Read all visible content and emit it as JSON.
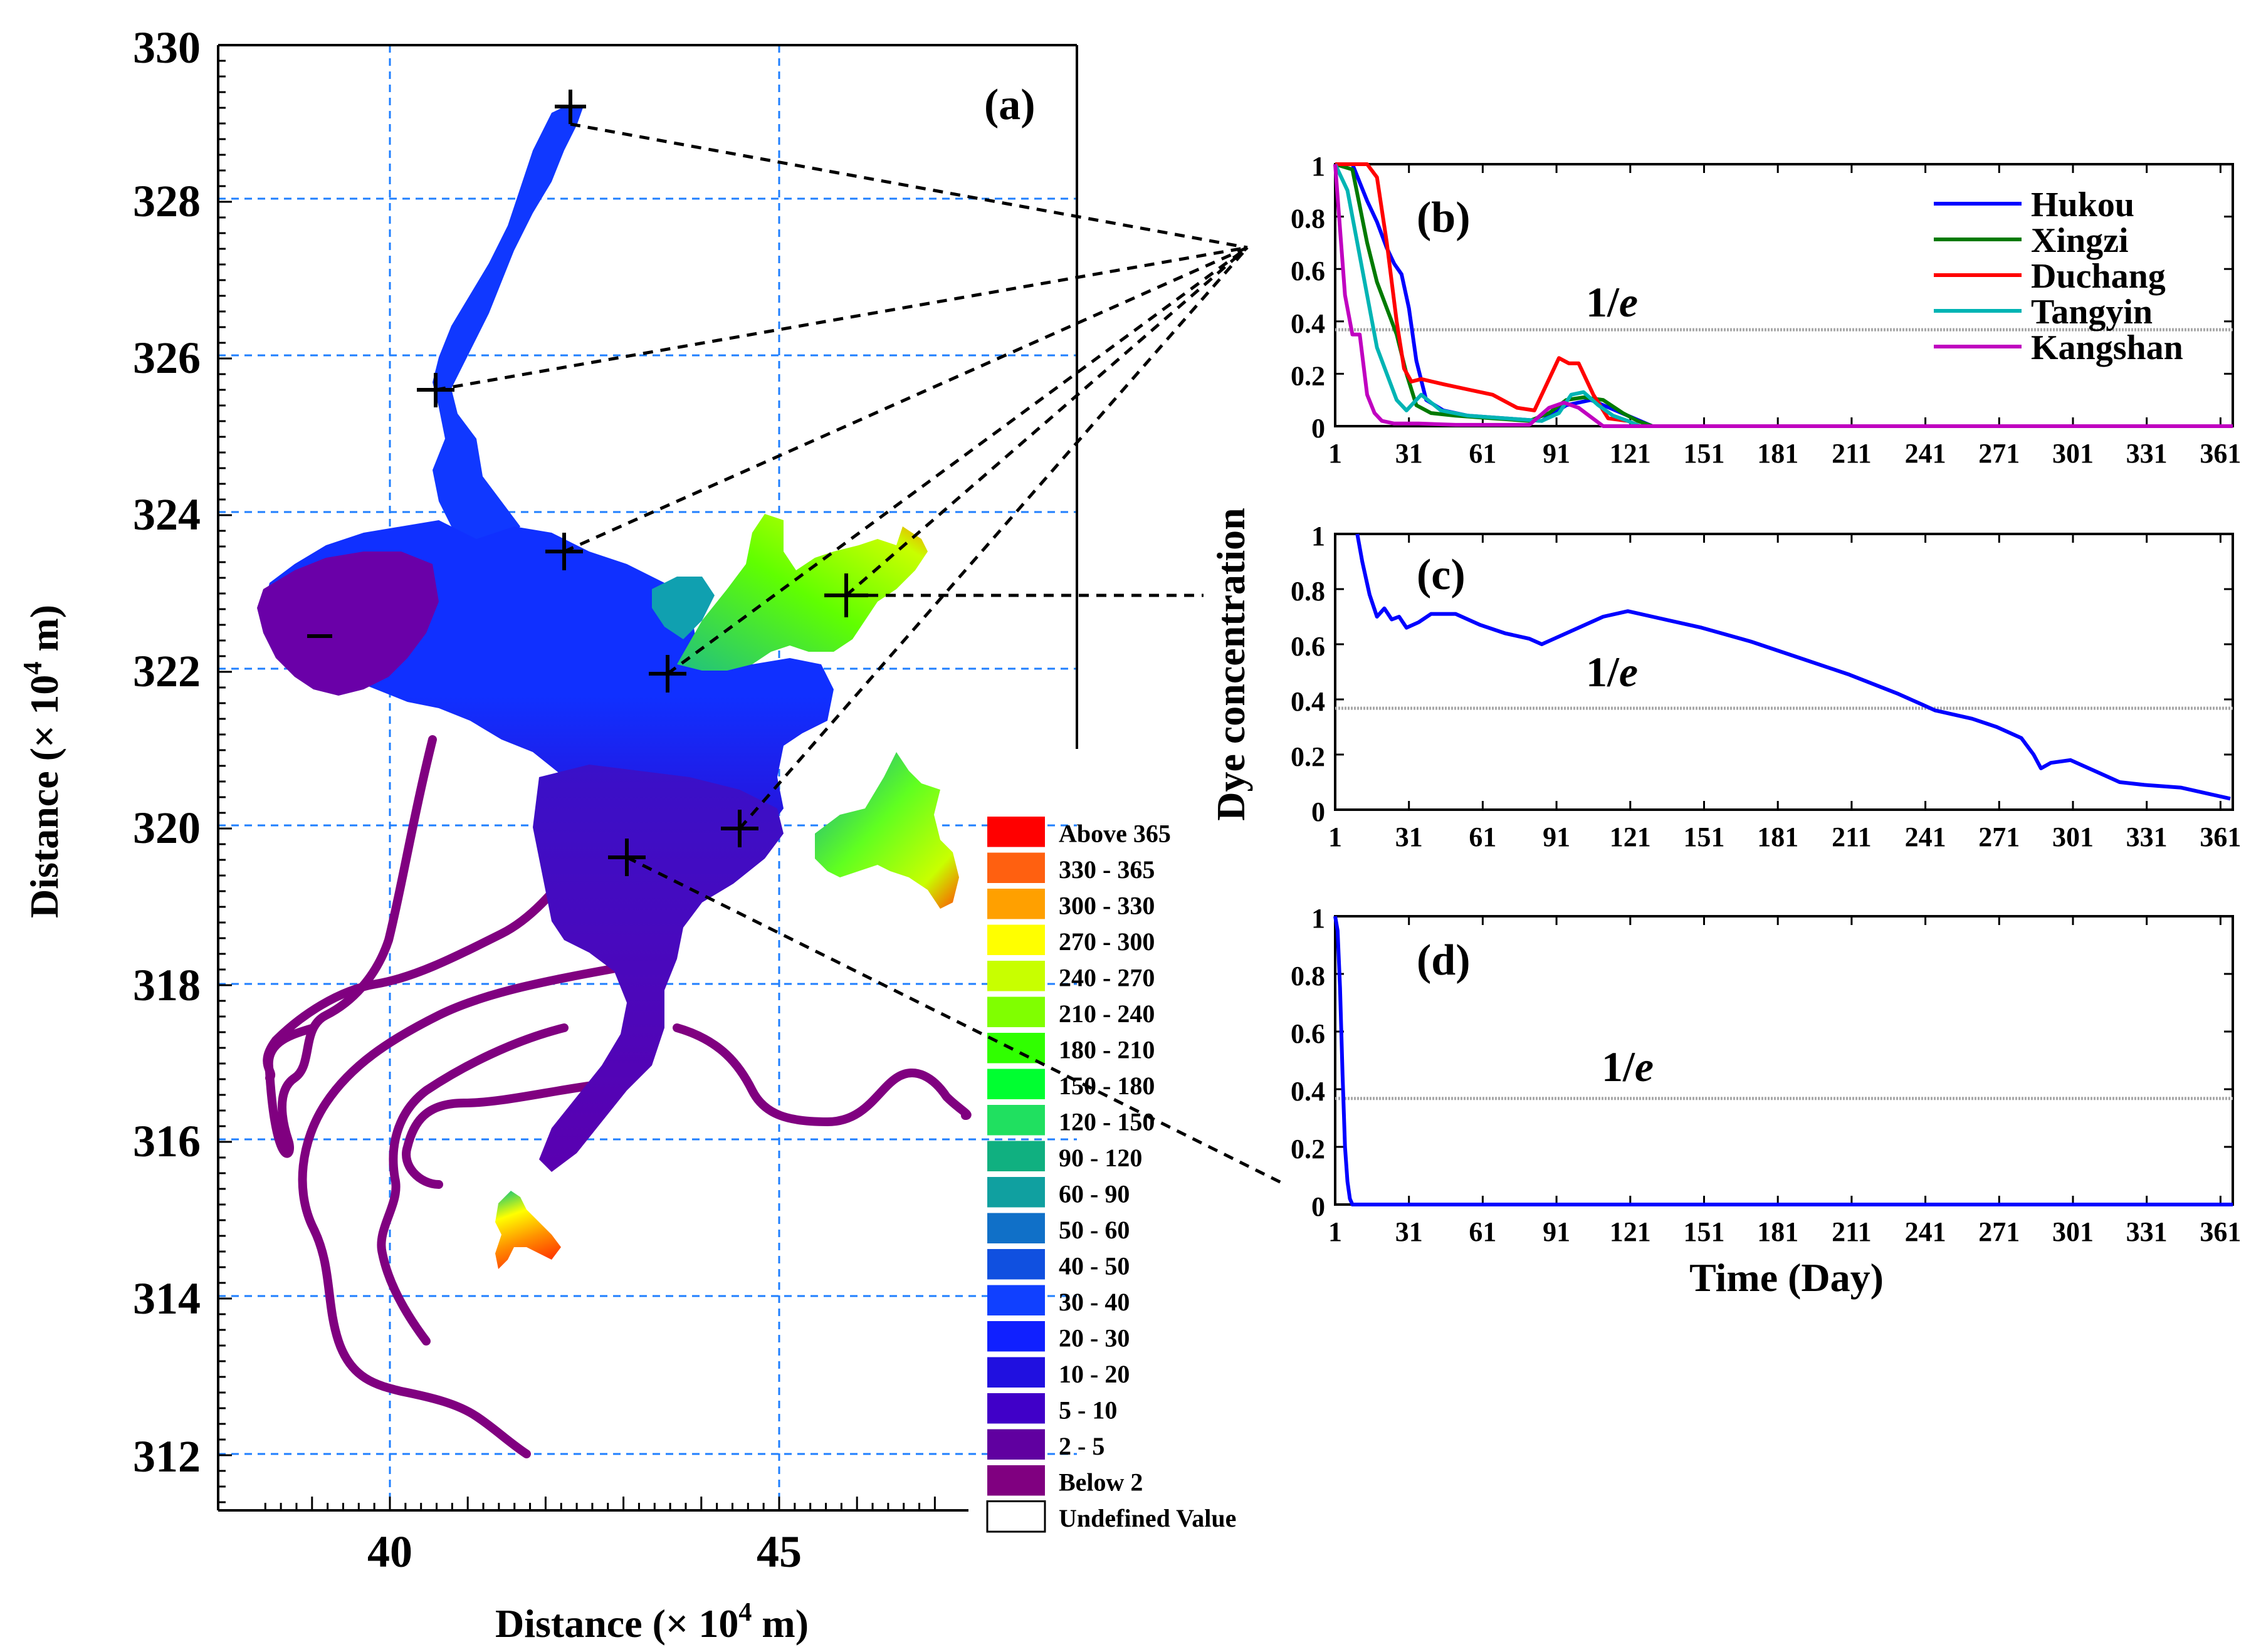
{
  "colors": {
    "grid": "#1f7fff",
    "reference_line": "#a8a8a8",
    "Hukou": "#0000ff",
    "Xingzi": "#007a00",
    "Duchang": "#ff0000",
    "Tangyin": "#00b4b4",
    "Kangshan": "#c000c0",
    "map_sequence": [
      "#800080",
      "#5000a0",
      "#3a00c8",
      "#2010e0",
      "#1030ff",
      "#1050e8",
      "#1070d0",
      "#00a0a0",
      "#00c080",
      "#00e060",
      "#00ff30",
      "#80ff00",
      "#c0ff00",
      "#ffff00",
      "#ffa000",
      "#ff6000",
      "#ff0000"
    ]
  },
  "map": {
    "label": "(a)",
    "xlabel": "Distance (× 10",
    "xlabel_sup": "4",
    "xlabel_tail": " m)",
    "ylabel": "Distance (× 10",
    "ylabel_sup": "4",
    "ylabel_tail": " m)",
    "x_ticks": [
      "40",
      "45"
    ],
    "y_ticks": [
      "312",
      "314",
      "316",
      "318",
      "320",
      "322",
      "324",
      "326",
      "328",
      "330"
    ],
    "colorbar": [
      {
        "label": "Above 365",
        "color": "#ff0000"
      },
      {
        "label": "330 - 365",
        "color": "#ff6010"
      },
      {
        "label": "300 - 330",
        "color": "#ffa000"
      },
      {
        "label": "270 - 300",
        "color": "#ffff00"
      },
      {
        "label": "240 - 270",
        "color": "#c8ff00"
      },
      {
        "label": "210 - 240",
        "color": "#80ff00"
      },
      {
        "label": "180 - 210",
        "color": "#30ff00"
      },
      {
        "label": "150 - 180",
        "color": "#00ff30"
      },
      {
        "label": "120 - 150",
        "color": "#20e060"
      },
      {
        "label": "90 - 120",
        "color": "#10b080"
      },
      {
        "label": "60 -   90",
        "color": "#10a0a0"
      },
      {
        "label": "50 -   60",
        "color": "#1070c8"
      },
      {
        "label": "40 -   50",
        "color": "#1050e0"
      },
      {
        "label": "30 -   40",
        "color": "#1040ff"
      },
      {
        "label": "20 -   30",
        "color": "#1020ff"
      },
      {
        "label": "10 -   20",
        "color": "#2010e0"
      },
      {
        "label": "5 -   10",
        "color": "#4000c8"
      },
      {
        "label": "2 -     5",
        "color": "#6000a0"
      },
      {
        "label": "Below     2",
        "color": "#800080"
      },
      {
        "label": "Undefined Value",
        "color": "#ffffff"
      }
    ]
  },
  "chart_data": [
    {
      "panel": "(b)",
      "type": "line",
      "x_ticks": [
        "1",
        "31",
        "61",
        "91",
        "121",
        "151",
        "181",
        "211",
        "241",
        "271",
        "301",
        "331",
        "361"
      ],
      "y_ticks": [
        "0",
        "0.2",
        "0.4",
        "0.6",
        "0.8",
        "1"
      ],
      "xlim": [
        1,
        366
      ],
      "ylim": [
        0,
        1
      ],
      "annotation": "1/e",
      "annotation_main": "1/",
      "annotation_italic": "e",
      "reference_y": 0.368,
      "legend_position": "top-right",
      "series": [
        {
          "name": "Hukou",
          "x": [
            1,
            8,
            14,
            18,
            22,
            25,
            28,
            31,
            34,
            38,
            45,
            55,
            70,
            85,
            95,
            105,
            115,
            125,
            130,
            366
          ],
          "y": [
            1.0,
            1.0,
            0.86,
            0.78,
            0.68,
            0.62,
            0.58,
            0.45,
            0.25,
            0.1,
            0.06,
            0.04,
            0.03,
            0.02,
            0.08,
            0.1,
            0.06,
            0.02,
            0.0,
            0.0
          ]
        },
        {
          "name": "Xingzi",
          "x": [
            1,
            8,
            14,
            18,
            22,
            26,
            30,
            34,
            40,
            50,
            65,
            80,
            88,
            95,
            102,
            110,
            118,
            124,
            130,
            366
          ],
          "y": [
            1.0,
            0.98,
            0.7,
            0.55,
            0.45,
            0.35,
            0.2,
            0.08,
            0.05,
            0.04,
            0.03,
            0.02,
            0.05,
            0.1,
            0.11,
            0.1,
            0.05,
            0.02,
            0.0,
            0.0
          ]
        },
        {
          "name": "Duchang",
          "x": [
            1,
            14,
            18,
            22,
            26,
            29,
            32,
            36,
            45,
            55,
            65,
            75,
            82,
            88,
            92,
            96,
            100,
            106,
            112,
            120,
            125,
            366
          ],
          "y": [
            1.0,
            1.0,
            0.95,
            0.7,
            0.4,
            0.22,
            0.17,
            0.18,
            0.16,
            0.14,
            0.12,
            0.07,
            0.06,
            0.18,
            0.26,
            0.24,
            0.24,
            0.12,
            0.03,
            0.02,
            0.0,
            0.0
          ]
        },
        {
          "name": "Tangyin",
          "x": [
            1,
            6,
            10,
            14,
            18,
            22,
            26,
            30,
            36,
            44,
            55,
            70,
            85,
            92,
            97,
            102,
            108,
            114,
            120,
            125,
            366
          ],
          "y": [
            1.0,
            0.9,
            0.7,
            0.5,
            0.3,
            0.2,
            0.1,
            0.06,
            0.12,
            0.06,
            0.04,
            0.03,
            0.02,
            0.05,
            0.12,
            0.13,
            0.08,
            0.04,
            0.02,
            0.0,
            0.0
          ]
        },
        {
          "name": "Kangshan",
          "x": [
            1,
            5,
            8,
            11,
            14,
            17,
            20,
            25,
            35,
            50,
            80,
            88,
            94,
            100,
            110,
            366
          ],
          "y": [
            1.0,
            0.5,
            0.35,
            0.35,
            0.12,
            0.05,
            0.02,
            0.01,
            0.01,
            0.005,
            0.005,
            0.07,
            0.09,
            0.07,
            0.0,
            0.0
          ]
        }
      ]
    },
    {
      "panel": "(c)",
      "type": "line",
      "ylabel": "Dye concentration",
      "x_ticks": [
        "1",
        "31",
        "61",
        "91",
        "121",
        "151",
        "181",
        "211",
        "241",
        "271",
        "301",
        "331",
        "361"
      ],
      "y_ticks": [
        "0",
        "0.2",
        "0.4",
        "0.6",
        "0.8",
        "1"
      ],
      "xlim": [
        1,
        366
      ],
      "ylim": [
        0,
        1
      ],
      "annotation": "1/e",
      "annotation_main": "1/",
      "annotation_italic": "e",
      "reference_y": 0.368,
      "series": [
        {
          "name": "",
          "x": [
            10,
            12,
            15,
            18,
            21,
            24,
            27,
            30,
            35,
            40,
            50,
            60,
            70,
            80,
            85,
            90,
            100,
            110,
            120,
            130,
            150,
            170,
            190,
            210,
            230,
            240,
            245,
            260,
            270,
            280,
            285,
            288,
            292,
            300,
            310,
            320,
            330,
            345,
            360,
            365
          ],
          "y": [
            1.0,
            0.9,
            0.78,
            0.7,
            0.73,
            0.69,
            0.7,
            0.66,
            0.68,
            0.71,
            0.71,
            0.67,
            0.64,
            0.62,
            0.6,
            0.62,
            0.66,
            0.7,
            0.72,
            0.7,
            0.66,
            0.61,
            0.55,
            0.49,
            0.42,
            0.38,
            0.36,
            0.33,
            0.3,
            0.26,
            0.2,
            0.15,
            0.17,
            0.18,
            0.14,
            0.1,
            0.09,
            0.08,
            0.05,
            0.04
          ]
        }
      ]
    },
    {
      "panel": "(d)",
      "type": "line",
      "xlabel": "Time (Day)",
      "x_ticks": [
        "1",
        "31",
        "61",
        "91",
        "121",
        "151",
        "181",
        "211",
        "241",
        "271",
        "301",
        "331",
        "361"
      ],
      "y_ticks": [
        "0",
        "0.2",
        "0.4",
        "0.6",
        "0.8",
        "1"
      ],
      "xlim": [
        1,
        366
      ],
      "ylim": [
        0,
        1
      ],
      "annotation": "1/e",
      "annotation_main": "1/",
      "annotation_italic": "e",
      "reference_y": 0.368,
      "series": [
        {
          "name": "",
          "x": [
            1,
            2,
            3,
            4,
            5,
            6,
            7,
            8,
            366
          ],
          "y": [
            1.0,
            0.95,
            0.75,
            0.45,
            0.2,
            0.08,
            0.02,
            0.0,
            0.0
          ]
        }
      ]
    }
  ]
}
